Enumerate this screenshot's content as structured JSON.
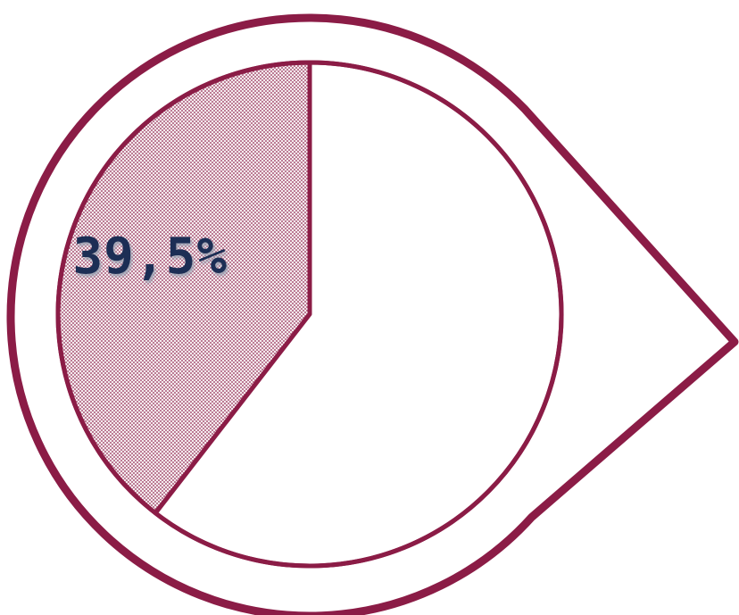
{
  "chart_data": {
    "type": "pie",
    "slices": [
      {
        "value": 39.5,
        "label": "39,5%",
        "pattern": "crosshatch"
      },
      {
        "value": 60.5,
        "label": "",
        "pattern": "none"
      }
    ],
    "title": "",
    "legend": "none",
    "frame_shape": "teardrop-pin",
    "colors": {
      "outline": "#8b1c46",
      "hatch": "#8b1c46",
      "label": "#1f2d54",
      "label_shadow": "#9aa3b3",
      "background": "#ffffff"
    }
  }
}
